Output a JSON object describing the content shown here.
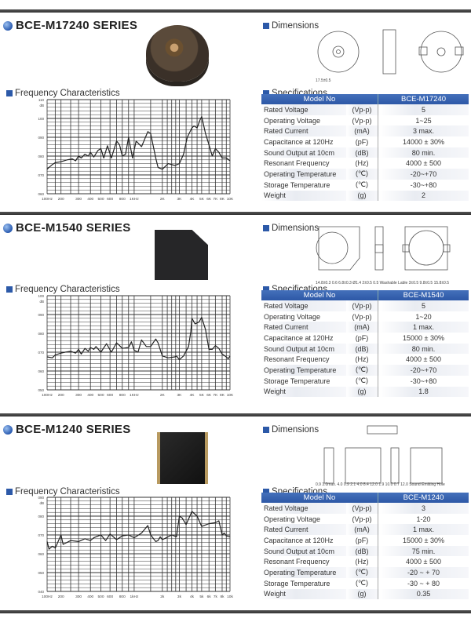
{
  "colors": {
    "accent": "#2c59a8",
    "header_bar": "#3a3a3a",
    "curve": "#222222"
  },
  "labels": {
    "frequency": "Frequency Characteristics",
    "dimensions": "Dimensions",
    "specifications": "Specifications",
    "model_no": "Model No"
  },
  "sections": [
    {
      "title": "BCE-M17240 SERIES",
      "model": "BCE-M17240",
      "dimension_labels": [
        "17.5±0.5"
      ],
      "specs": [
        [
          "Rated Voltage",
          "(Vp-p)",
          "5"
        ],
        [
          "Operating Voltage",
          "(Vp-p)",
          "1~25"
        ],
        [
          "Rated Current",
          "(mA)",
          "3 max."
        ],
        [
          "Capacitance at 120Hz",
          "(pF)",
          "14000 ± 30%"
        ],
        [
          "Sound Output at 10cm",
          "(dB)",
          "80 min."
        ],
        [
          "Resonant Frequency",
          "(Hz)",
          "4000 ± 500"
        ],
        [
          "Operating Temperature",
          "(℃)",
          "-20~+70"
        ],
        [
          "Storage Temperature",
          "(℃)",
          "-30~+80"
        ],
        [
          "Weight",
          "(g)",
          "2"
        ]
      ]
    },
    {
      "title": "BCE-M1540 SERIES",
      "model": "BCE-M1540",
      "dimension_labels": [
        "14.8±0.3",
        "0.6",
        "6.8±0.3",
        "Ø1.4",
        "2±0.5",
        "0.5",
        "Washable Lable",
        "3±0.5",
        "9.8±0.5",
        "15.8±0.5"
      ],
      "specs": [
        [
          "Rated Voltage",
          "(Vp-p)",
          "5"
        ],
        [
          "Operating Voltage",
          "(Vp-p)",
          "1~20"
        ],
        [
          "Rated Current",
          "(mA)",
          "1 max."
        ],
        [
          "Capacitance at 120Hz",
          "(pF)",
          "15000 ± 30%"
        ],
        [
          "Sound Output at 10cm",
          "(dB)",
          "80 min."
        ],
        [
          "Resonant Frequency",
          "(Hz)",
          "4000 ± 500"
        ],
        [
          "Operating Temperature",
          "(℃)",
          "-20~+70"
        ],
        [
          "Storage Temperature",
          "(℃)",
          "-30~+80"
        ],
        [
          "Weight",
          "(g)",
          "1.8"
        ]
      ]
    },
    {
      "title": "BCE-M1240 SERIES",
      "model": "BCE-M1240",
      "dimension_labels": [
        "0.9",
        "3.0max.",
        "4.0",
        "0.9",
        "2.1",
        "4.0",
        "8.4",
        "12.0",
        "1.9",
        "10.0",
        "0.7",
        "12.0",
        "Sound Emitting Hole"
      ],
      "specs": [
        [
          "Rated Voltage",
          "(Vp-p)",
          "3"
        ],
        [
          "Operating Voltage",
          "(Vp-p)",
          "1-20"
        ],
        [
          "Rated Current",
          "(mA)",
          "1 max."
        ],
        [
          "Capacitance at 120Hz",
          "(pF)",
          "15000 ± 30%"
        ],
        [
          "Sound Output at 10cm",
          "(dB)",
          "75 min."
        ],
        [
          "Resonant Frequency",
          "(Hz)",
          "4000 ± 500"
        ],
        [
          "Operating Temperature",
          "(℃)",
          "-20 ~ + 70"
        ],
        [
          "Storage Temperature",
          "(℃)",
          "-30 ~ + 80"
        ],
        [
          "Weight",
          "(g)",
          "0.35"
        ]
      ]
    }
  ],
  "chart_data": [
    {
      "type": "line",
      "ylabel": "dB",
      "ylim": [
        60,
        110
      ],
      "grid": true,
      "yticks": [
        "110",
        "100",
        "090",
        "080",
        "070",
        "060"
      ],
      "xticks": [
        [
          100,
          "100Hz"
        ],
        [
          200,
          "200"
        ],
        [
          300,
          "300"
        ],
        [
          400,
          "400"
        ],
        [
          500,
          "500"
        ],
        [
          600,
          "600"
        ],
        [
          800,
          "800"
        ],
        [
          1000,
          "1KHz"
        ],
        [
          2000,
          "2K"
        ],
        [
          3000,
          "3K"
        ],
        [
          4000,
          "4K"
        ],
        [
          5000,
          "5K"
        ],
        [
          6000,
          "6K"
        ],
        [
          7000,
          "7K"
        ],
        [
          8000,
          "8K"
        ],
        [
          10000,
          "10K"
        ]
      ],
      "points": [
        [
          100,
          73
        ],
        [
          110,
          74
        ],
        [
          130,
          75.5
        ],
        [
          150,
          76.5
        ],
        [
          200,
          77
        ],
        [
          230,
          78
        ],
        [
          260,
          78.5
        ],
        [
          280,
          77.5
        ],
        [
          300,
          80
        ],
        [
          320,
          79
        ],
        [
          350,
          81
        ],
        [
          380,
          80
        ],
        [
          400,
          82
        ],
        [
          430,
          79.5
        ],
        [
          470,
          83
        ],
        [
          500,
          84
        ],
        [
          530,
          79
        ],
        [
          570,
          85.5
        ],
        [
          620,
          79
        ],
        [
          700,
          88
        ],
        [
          750,
          86
        ],
        [
          800,
          80
        ],
        [
          850,
          81
        ],
        [
          900,
          90
        ],
        [
          970,
          79
        ],
        [
          1050,
          88
        ],
        [
          1200,
          85
        ],
        [
          1400,
          93
        ],
        [
          1500,
          92
        ],
        [
          1700,
          79
        ],
        [
          1800,
          74
        ],
        [
          2000,
          73
        ],
        [
          2300,
          76
        ],
        [
          2700,
          75
        ],
        [
          3000,
          76
        ],
        [
          3300,
          81
        ],
        [
          3600,
          90
        ],
        [
          4000,
          95
        ],
        [
          4200,
          96
        ],
        [
          4500,
          95
        ],
        [
          4800,
          99
        ],
        [
          5000,
          101
        ],
        [
          5500,
          92
        ],
        [
          6000,
          86
        ],
        [
          6500,
          80
        ],
        [
          7000,
          84
        ],
        [
          7500,
          82
        ],
        [
          8000,
          79
        ],
        [
          9000,
          79
        ],
        [
          10000,
          77.5
        ]
      ]
    },
    {
      "type": "line",
      "ylabel": "dB",
      "ylim": [
        50,
        100
      ],
      "grid": true,
      "yticks": [
        "100",
        "090",
        "080",
        "070",
        "060",
        "050"
      ],
      "xticks": [
        [
          100,
          "100Hz"
        ],
        [
          200,
          "200"
        ],
        [
          300,
          "300"
        ],
        [
          400,
          "400"
        ],
        [
          500,
          "500"
        ],
        [
          600,
          "600"
        ],
        [
          800,
          "800"
        ],
        [
          1000,
          "1KHz"
        ],
        [
          2000,
          "2K"
        ],
        [
          3000,
          "3K"
        ],
        [
          4000,
          "4K"
        ],
        [
          5000,
          "5K"
        ],
        [
          6000,
          "6K"
        ],
        [
          7000,
          "7K"
        ],
        [
          8000,
          "8K"
        ],
        [
          10000,
          "10K"
        ]
      ],
      "points": [
        [
          100,
          67.5
        ],
        [
          130,
          67
        ],
        [
          150,
          68.5
        ],
        [
          200,
          69.5
        ],
        [
          220,
          70
        ],
        [
          250,
          70.5
        ],
        [
          280,
          69.5
        ],
        [
          300,
          71.5
        ],
        [
          320,
          69
        ],
        [
          350,
          72
        ],
        [
          380,
          70.5
        ],
        [
          400,
          72.5
        ],
        [
          430,
          71.5
        ],
        [
          450,
          73
        ],
        [
          500,
          70
        ],
        [
          560,
          74.5
        ],
        [
          620,
          70
        ],
        [
          700,
          75
        ],
        [
          750,
          73.5
        ],
        [
          800,
          72
        ],
        [
          900,
          72.5
        ],
        [
          950,
          75.5
        ],
        [
          1000,
          71
        ],
        [
          1100,
          70
        ],
        [
          1200,
          76.5
        ],
        [
          1350,
          73
        ],
        [
          1500,
          73
        ],
        [
          1700,
          77
        ],
        [
          1800,
          75
        ],
        [
          2000,
          68
        ],
        [
          2300,
          67
        ],
        [
          2700,
          67.5
        ],
        [
          2800,
          68
        ],
        [
          3000,
          66
        ],
        [
          3300,
          68
        ],
        [
          3700,
          73
        ],
        [
          3900,
          81
        ],
        [
          4000,
          88
        ],
        [
          4300,
          85
        ],
        [
          4700,
          86
        ],
        [
          5000,
          88.5
        ],
        [
          5500,
          82
        ],
        [
          6000,
          71.5
        ],
        [
          6500,
          71.5
        ],
        [
          7000,
          73.5
        ],
        [
          7500,
          72
        ],
        [
          8000,
          69
        ],
        [
          9000,
          67.5
        ],
        [
          9500,
          66.5
        ],
        [
          10000,
          68
        ]
      ]
    },
    {
      "type": "line",
      "ylabel": "dB",
      "ylim": [
        40,
        90
      ],
      "grid": true,
      "yticks": [
        "090",
        "080",
        "070",
        "060",
        "050",
        "040"
      ],
      "xticks": [
        [
          100,
          "100Hz"
        ],
        [
          200,
          "200"
        ],
        [
          300,
          "300"
        ],
        [
          400,
          "400"
        ],
        [
          500,
          "500"
        ],
        [
          600,
          "600"
        ],
        [
          800,
          "800"
        ],
        [
          1000,
          "1kHz"
        ],
        [
          2000,
          "2k"
        ],
        [
          3000,
          "3k"
        ],
        [
          4000,
          "4k"
        ],
        [
          5000,
          "5k"
        ],
        [
          6000,
          "6k"
        ],
        [
          7000,
          "7k"
        ],
        [
          8000,
          "8k"
        ],
        [
          10000,
          "10k"
        ]
      ],
      "points": [
        [
          100,
          66.5
        ],
        [
          110,
          62.5
        ],
        [
          130,
          64
        ],
        [
          150,
          63
        ],
        [
          200,
          70
        ],
        [
          210,
          65
        ],
        [
          250,
          67
        ],
        [
          300,
          66.5
        ],
        [
          350,
          68
        ],
        [
          400,
          67
        ],
        [
          430,
          68.5
        ],
        [
          500,
          70
        ],
        [
          550,
          67
        ],
        [
          600,
          70.5
        ],
        [
          700,
          67.5
        ],
        [
          800,
          69.5
        ],
        [
          900,
          70
        ],
        [
          1000,
          68.5
        ],
        [
          1200,
          71
        ],
        [
          1400,
          75
        ],
        [
          1500,
          70
        ],
        [
          1700,
          66.5
        ],
        [
          1800,
          67
        ],
        [
          1900,
          69
        ],
        [
          2000,
          67.5
        ],
        [
          2200,
          68.5
        ],
        [
          2500,
          70
        ],
        [
          2800,
          69
        ],
        [
          3000,
          80
        ],
        [
          3200,
          79
        ],
        [
          3500,
          75.5
        ],
        [
          4000,
          82.5
        ],
        [
          4500,
          80
        ],
        [
          5000,
          74.5
        ],
        [
          6000,
          76
        ],
        [
          7000,
          76.5
        ],
        [
          7500,
          77.5
        ],
        [
          8000,
          70
        ],
        [
          8500,
          71
        ],
        [
          9000,
          69.5
        ],
        [
          10000,
          69
        ]
      ]
    }
  ]
}
